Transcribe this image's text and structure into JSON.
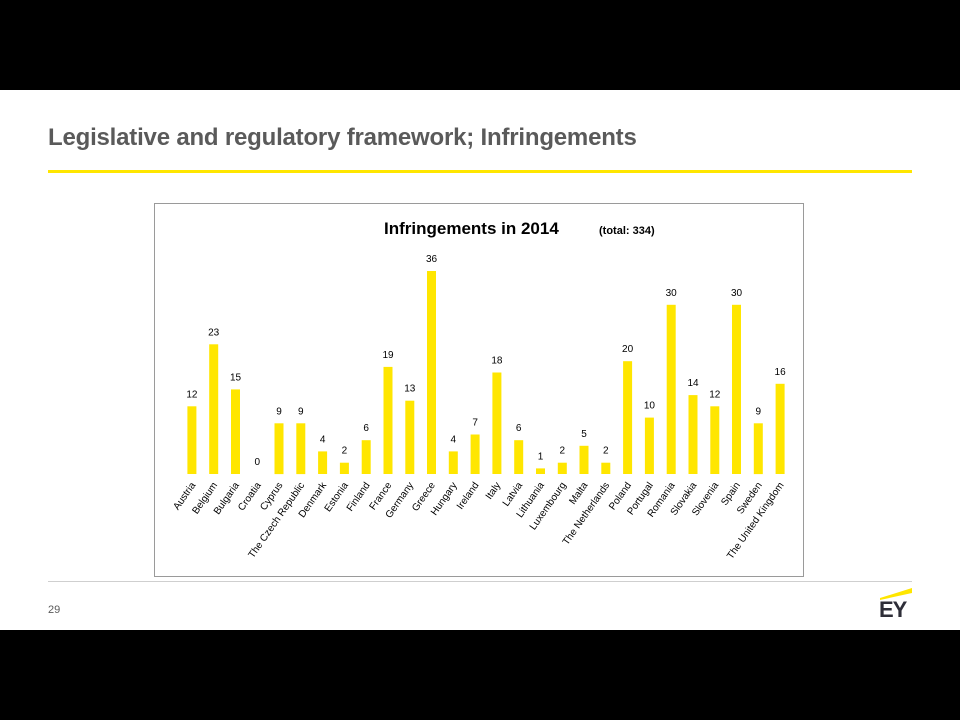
{
  "slide": {
    "title": "Legislative and regulatory framework; Infringements",
    "page_number": "29",
    "logo_text": "EY"
  },
  "colors": {
    "accent": "#ffe600",
    "title": "#5a5a5a",
    "bar": "#ffe600"
  },
  "chart_data": {
    "type": "bar",
    "title": "Infringements in 2014",
    "subtitle": "(total: 334)",
    "categories": [
      "Austria",
      "Belgium",
      "Bulgaria",
      "Croatia",
      "Cyprus",
      "The Czech Republic",
      "Denmark",
      "Estonia",
      "Finland",
      "France",
      "Germany",
      "Greece",
      "Hungary",
      "Ireland",
      "Italy",
      "Latvia",
      "Lithuania",
      "Luxembourg",
      "Malta",
      "The Netherlands",
      "Poland",
      "Portugal",
      "Romania",
      "Slovakia",
      "Slovenia",
      "Spain",
      "Sweden",
      "The United Kingdom"
    ],
    "values": [
      12,
      23,
      15,
      0,
      9,
      9,
      4,
      2,
      6,
      19,
      13,
      36,
      4,
      7,
      18,
      6,
      1,
      2,
      5,
      2,
      20,
      10,
      30,
      14,
      12,
      30,
      9,
      16
    ],
    "xlabel": "",
    "ylabel": "",
    "ylim": [
      0,
      36
    ],
    "grid": false,
    "legend": "none"
  }
}
